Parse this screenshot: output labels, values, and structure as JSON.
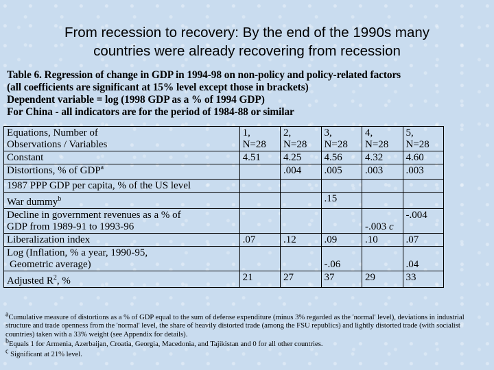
{
  "slide_title_line1": "From recession to recovery: By the end of the 1990s many",
  "slide_title_line2": "countries were already recovering from recession",
  "table_caption": [
    "Table 6. Regression of change in GDP in 1994-98 on non-policy and policy-related factors",
    "(all coefficients are significant at 15% level except those in brackets)",
    "Dependent variable = log (1998 GDP as a % of 1994 GDP)",
    "For China - all indicators are for the period of 1984-88 or similar"
  ],
  "header": {
    "label_line1": "Equations, Number of",
    "label_line2": "Observations / Variables",
    "columns": [
      {
        "eq": "1,",
        "n": "N=28"
      },
      {
        "eq": "2,",
        "n": "N=28"
      },
      {
        "eq": "3,",
        "n": "N=28"
      },
      {
        "eq": "4,",
        "n": "N=28"
      },
      {
        "eq": "5,",
        "n": "N=28"
      }
    ]
  },
  "rows": {
    "constant": {
      "label": "Constant",
      "values": [
        "4.51",
        "4.25",
        "4.56",
        "4.32",
        "4.60"
      ]
    },
    "distortions": {
      "label": "Distortions, % of GDP",
      "sup": "a",
      "values": [
        "",
        ".004",
        ".005",
        ".003",
        ".003"
      ]
    },
    "ppp": {
      "label": "1987 PPP GDP per capita, % of the US level",
      "values": [
        "",
        "",
        "",
        "",
        ""
      ]
    },
    "war": {
      "label": "War dummy",
      "sup": "b",
      "values": [
        "",
        "",
        ".15",
        "",
        ""
      ]
    },
    "decline": {
      "label_line1": "Decline in government revenues as a % of",
      "label_line2": "GDP from 1989-91 to 1993-96",
      "values": [
        "",
        "",
        "",
        "-.003",
        "-.004"
      ],
      "sup_col4": "c"
    },
    "liberalization": {
      "label": "Liberalization index",
      "values": [
        ".07",
        ".12",
        ".09",
        ".10",
        ".07"
      ]
    },
    "inflation": {
      "label_line1": "Log (Inflation, % a year, 1990-95,",
      "label_line2": "Geometric average)",
      "values": [
        "",
        "",
        "-.06",
        "",
        ".04"
      ]
    },
    "adjr2": {
      "label_pre": "Adjusted R",
      "sup": "2",
      "label_post": ", %",
      "values": [
        "21",
        "27",
        "37",
        "29",
        "33"
      ]
    }
  },
  "notes": {
    "a_mark": "a",
    "a_text": "Cumulative measure of distortions as a % of GDP equal to the sum of defense expenditure (minus 3% regarded as the 'normal' level), deviations in industrial structure and trade openness from the 'normal' level, the share of heavily distorted trade (among the FSU republics) and lightly distorted trade (with socialist countries) taken with a 33% weight (see Appendix for details).",
    "b_mark": "b",
    "b_text": "Equals 1 for Armenia, Azerbaijan, Croatia, Georgia, Macedonia, and Tajikistan and 0 for all other countries.",
    "c_mark": "c",
    "c_text": "Significant at 21% level."
  }
}
